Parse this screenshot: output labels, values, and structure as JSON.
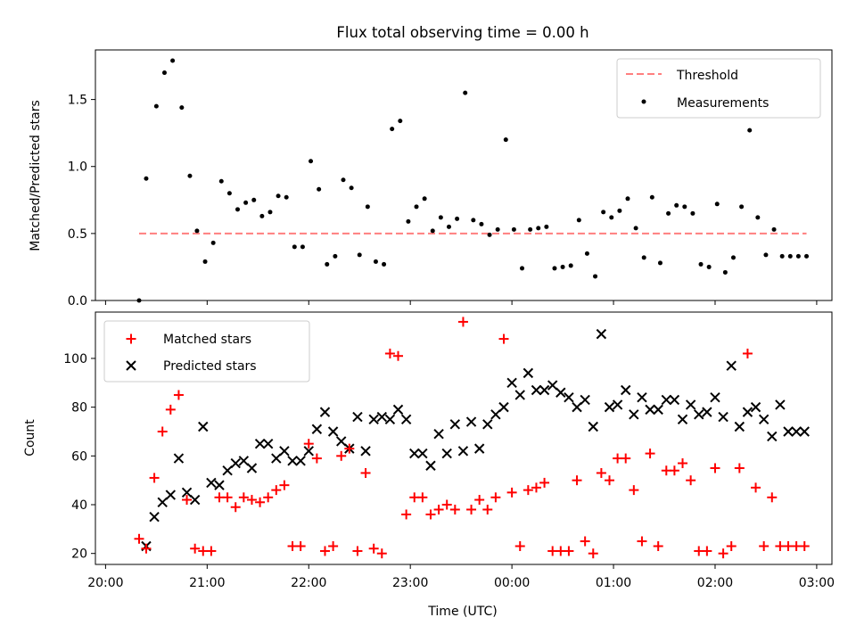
{
  "figure": {
    "title": "Flux total observing time = 0.00 h",
    "xlabel": "Time (UTC)",
    "xticks": [
      "20:00",
      "21:00",
      "22:00",
      "23:00",
      "00:00",
      "01:00",
      "02:00",
      "03:00"
    ]
  },
  "colors": {
    "threshold": "#ff7f7f",
    "measurements": "#000000",
    "matched": "#ff0000",
    "predicted": "#000000"
  },
  "chart_data": [
    {
      "type": "scatter",
      "ylabel": "Matched/Predicted stars",
      "xlim": [
        19.9,
        27.15
      ],
      "ylim": [
        0.0,
        1.87
      ],
      "yticks": [
        0.0,
        0.5,
        1.0,
        1.5
      ],
      "legend_position": "top-right",
      "threshold": {
        "name": "Threshold",
        "y": 0.5,
        "x_range": [
          20.33,
          26.9
        ]
      },
      "series": [
        {
          "name": "Measurements",
          "x": [
            20.33,
            20.4,
            20.5,
            20.58,
            20.66,
            20.75,
            20.83,
            20.9,
            20.98,
            21.06,
            21.14,
            21.22,
            21.3,
            21.38,
            21.46,
            21.54,
            21.62,
            21.7,
            21.78,
            21.86,
            21.94,
            22.02,
            22.1,
            22.18,
            22.26,
            22.34,
            22.42,
            22.5,
            22.58,
            22.66,
            22.74,
            22.82,
            22.9,
            22.98,
            23.06,
            23.14,
            23.22,
            23.3,
            23.38,
            23.46,
            23.54,
            23.62,
            23.7,
            23.78,
            23.86,
            23.94,
            24.02,
            24.1,
            24.18,
            24.26,
            24.34,
            24.42,
            24.5,
            24.58,
            24.66,
            24.74,
            24.82,
            24.9,
            24.98,
            25.06,
            25.14,
            25.22,
            25.3,
            25.38,
            25.46,
            25.54,
            25.62,
            25.7,
            25.78,
            25.86,
            25.94,
            26.02,
            26.1,
            26.18,
            26.26,
            26.34,
            26.42,
            26.5,
            26.58,
            26.66,
            26.74,
            26.82,
            26.9
          ],
          "y": [
            0.0,
            0.91,
            1.45,
            1.7,
            1.79,
            1.44,
            0.93,
            0.52,
            0.29,
            0.43,
            0.89,
            0.8,
            0.68,
            0.73,
            0.75,
            0.63,
            0.66,
            0.78,
            0.77,
            0.4,
            0.4,
            1.04,
            0.83,
            0.27,
            0.33,
            0.9,
            0.84,
            0.34,
            0.7,
            0.29,
            0.27,
            1.28,
            1.34,
            0.59,
            0.7,
            0.76,
            0.52,
            0.62,
            0.55,
            0.61,
            1.55,
            0.6,
            0.57,
            0.49,
            0.53,
            1.2,
            0.53,
            0.24,
            0.53,
            0.54,
            0.55,
            0.24,
            0.25,
            0.26,
            0.6,
            0.35,
            0.18,
            0.66,
            0.62,
            0.67,
            0.76,
            0.54,
            0.32,
            0.77,
            0.28,
            0.65,
            0.71,
            0.7,
            0.65,
            0.27,
            0.25,
            0.72,
            0.21,
            0.32,
            0.7,
            1.27,
            0.62,
            0.34,
            0.53,
            0.33,
            0.33,
            0.33,
            0.33
          ]
        }
      ]
    },
    {
      "type": "scatter",
      "ylabel": "Count",
      "xlim": [
        19.9,
        27.15
      ],
      "ylim": [
        15.5,
        119
      ],
      "yticks": [
        20,
        40,
        60,
        80,
        100
      ],
      "legend_position": "top-left",
      "series": [
        {
          "name": "Matched stars",
          "marker": "plus",
          "x": [
            20.33,
            20.4,
            20.48,
            20.56,
            20.64,
            20.72,
            20.8,
            20.88,
            20.96,
            21.04,
            21.12,
            21.2,
            21.28,
            21.36,
            21.44,
            21.52,
            21.6,
            21.68,
            21.76,
            21.84,
            21.92,
            22.0,
            22.08,
            22.16,
            22.24,
            22.32,
            22.4,
            22.48,
            22.56,
            22.64,
            22.72,
            22.8,
            22.88,
            22.96,
            23.04,
            23.12,
            23.2,
            23.28,
            23.36,
            23.44,
            23.52,
            23.6,
            23.68,
            23.76,
            23.84,
            23.92,
            24.0,
            24.08,
            24.16,
            24.24,
            24.32,
            24.4,
            24.48,
            24.56,
            24.64,
            24.72,
            24.8,
            24.88,
            24.96,
            25.04,
            25.12,
            25.2,
            25.28,
            25.36,
            25.44,
            25.52,
            25.6,
            25.68,
            25.76,
            25.84,
            25.92,
            26.0,
            26.08,
            26.16,
            26.24,
            26.32,
            26.4,
            26.48,
            26.56,
            26.64,
            26.72,
            26.8,
            26.88
          ],
          "y": [
            26,
            22,
            51,
            70,
            79,
            85,
            42,
            22,
            21,
            21,
            43,
            43,
            39,
            43,
            42,
            41,
            43,
            46,
            48,
            23,
            23,
            65,
            59,
            21,
            23,
            60,
            63,
            21,
            53,
            22,
            20,
            102,
            101,
            36,
            43,
            43,
            36,
            38,
            40,
            38,
            115,
            38,
            42,
            38,
            43,
            108,
            45,
            23,
            46,
            47,
            49,
            21,
            21,
            21,
            50,
            25,
            20,
            53,
            50,
            59,
            59,
            46,
            25,
            61,
            23,
            54,
            54,
            57,
            50,
            21,
            21,
            55,
            20,
            23,
            55,
            102,
            47,
            23,
            43,
            23,
            23,
            23,
            23
          ]
        },
        {
          "name": "Predicted stars",
          "marker": "x",
          "x": [
            20.4,
            20.48,
            20.56,
            20.64,
            20.72,
            20.8,
            20.88,
            20.96,
            21.04,
            21.12,
            21.2,
            21.28,
            21.36,
            21.44,
            21.52,
            21.6,
            21.68,
            21.76,
            21.84,
            21.92,
            22.0,
            22.08,
            22.16,
            22.24,
            22.32,
            22.4,
            22.48,
            22.56,
            22.64,
            22.72,
            22.8,
            22.88,
            22.96,
            23.04,
            23.12,
            23.2,
            23.28,
            23.36,
            23.44,
            23.52,
            23.6,
            23.68,
            23.76,
            23.84,
            23.92,
            24.0,
            24.08,
            24.16,
            24.24,
            24.32,
            24.4,
            24.48,
            24.56,
            24.64,
            24.72,
            24.8,
            24.88,
            24.96,
            25.04,
            25.12,
            25.2,
            25.28,
            25.36,
            25.44,
            25.52,
            25.6,
            25.68,
            25.76,
            25.84,
            25.92,
            26.0,
            26.08,
            26.16,
            26.24,
            26.32,
            26.4,
            26.48,
            26.56,
            26.64,
            26.72,
            26.8,
            26.88
          ],
          "y": [
            23,
            35,
            41,
            44,
            59,
            45,
            42,
            72,
            49,
            48,
            54,
            57,
            58,
            55,
            65,
            65,
            59,
            62,
            58,
            58,
            62,
            71,
            78,
            70,
            66,
            63,
            76,
            62,
            75,
            76,
            75,
            79,
            75,
            61,
            61,
            56,
            69,
            61,
            73,
            62,
            74,
            63,
            73,
            77,
            80,
            90,
            85,
            94,
            87,
            87,
            89,
            86,
            84,
            80,
            83,
            72,
            110,
            80,
            81,
            87,
            77,
            84,
            79,
            79,
            83,
            83,
            75,
            81,
            77,
            78,
            84,
            76,
            97,
            72,
            78,
            80,
            75,
            68,
            81,
            70,
            70,
            70
          ]
        }
      ]
    }
  ]
}
